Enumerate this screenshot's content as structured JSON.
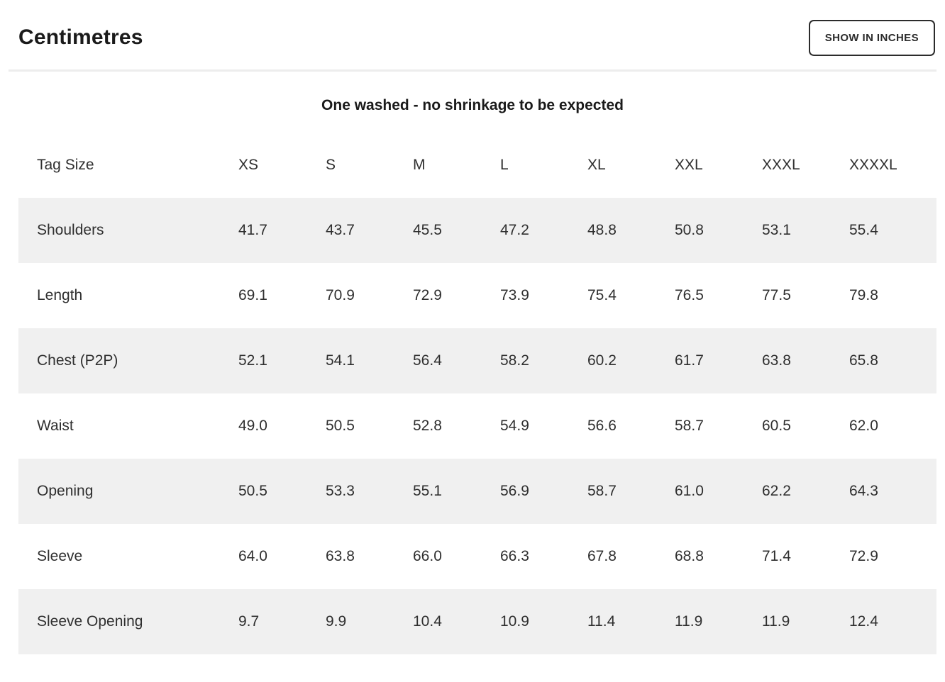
{
  "header": {
    "title": "Centimetres",
    "toggle_button": "SHOW IN INCHES"
  },
  "note": "One washed - no shrinkage to be expected",
  "colors": {
    "stripe": "#f0f0f0",
    "divider": "#ededed",
    "text": "#2f2f2f",
    "button_border": "#2b2b2b"
  },
  "table": {
    "columns": [
      "Tag Size",
      "XS",
      "S",
      "M",
      "L",
      "XL",
      "XXL",
      "XXXL",
      "XXXXL"
    ],
    "rows": [
      {
        "label": "Shoulders",
        "values": [
          "41.7",
          "43.7",
          "45.5",
          "47.2",
          "48.8",
          "50.8",
          "53.1",
          "55.4"
        ]
      },
      {
        "label": "Length",
        "values": [
          "69.1",
          "70.9",
          "72.9",
          "73.9",
          "75.4",
          "76.5",
          "77.5",
          "79.8"
        ]
      },
      {
        "label": "Chest (P2P)",
        "values": [
          "52.1",
          "54.1",
          "56.4",
          "58.2",
          "60.2",
          "61.7",
          "63.8",
          "65.8"
        ]
      },
      {
        "label": "Waist",
        "values": [
          "49.0",
          "50.5",
          "52.8",
          "54.9",
          "56.6",
          "58.7",
          "60.5",
          "62.0"
        ]
      },
      {
        "label": "Opening",
        "values": [
          "50.5",
          "53.3",
          "55.1",
          "56.9",
          "58.7",
          "61.0",
          "62.2",
          "64.3"
        ]
      },
      {
        "label": "Sleeve",
        "values": [
          "64.0",
          "63.8",
          "66.0",
          "66.3",
          "67.8",
          "68.8",
          "71.4",
          "72.9"
        ]
      },
      {
        "label": "Sleeve Opening",
        "values": [
          "9.7",
          "9.9",
          "10.4",
          "10.9",
          "11.4",
          "11.9",
          "11.9",
          "12.4"
        ]
      }
    ]
  }
}
